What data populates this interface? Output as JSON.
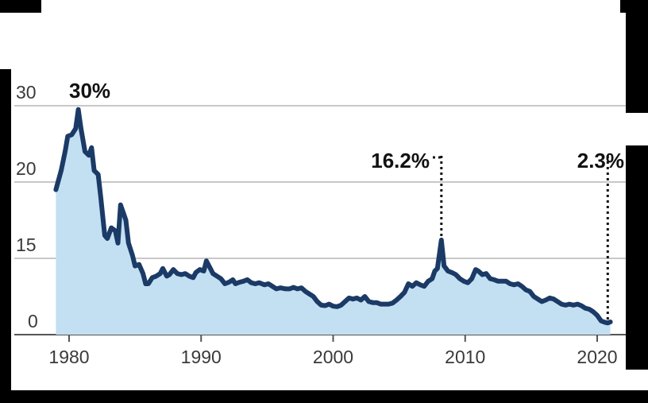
{
  "chart_data": {
    "type": "area",
    "title": "",
    "xlabel": "",
    "ylabel": "",
    "xlim": [
      1979,
      2021
    ],
    "y_tick_labels": [
      "0",
      "15",
      "20",
      "30"
    ],
    "x_ticks": [
      1980,
      1990,
      2000,
      2010,
      2020
    ],
    "grid": true,
    "colors": {
      "line": "#1b3a66",
      "fill": "#c3dff2",
      "grid": "#c8c8c8",
      "annotation": "#111111"
    },
    "annotations": [
      {
        "label": "30%",
        "x": 1980.8,
        "y": 29.5
      },
      {
        "label": "16.2%",
        "x": 2008.2,
        "y": 16.2
      },
      {
        "label": "2.3%",
        "x": 2020.8,
        "y": 2.3
      }
    ],
    "series": [
      {
        "points": [
          [
            1979.0,
            19.5
          ],
          [
            1979.4,
            21.5
          ],
          [
            1979.7,
            24.0
          ],
          [
            1979.9,
            26.0
          ],
          [
            1980.2,
            26.2
          ],
          [
            1980.5,
            27.0
          ],
          [
            1980.7,
            29.5
          ],
          [
            1980.9,
            27.0
          ],
          [
            1981.2,
            24.0
          ],
          [
            1981.5,
            23.5
          ],
          [
            1981.7,
            24.5
          ],
          [
            1981.9,
            21.5
          ],
          [
            1982.2,
            21.0
          ],
          [
            1982.4,
            19.0
          ],
          [
            1982.7,
            16.5
          ],
          [
            1982.9,
            16.3
          ],
          [
            1983.2,
            17.0
          ],
          [
            1983.5,
            16.8
          ],
          [
            1983.7,
            16.0
          ],
          [
            1983.9,
            18.5
          ],
          [
            1984.1,
            18.0
          ],
          [
            1984.3,
            17.5
          ],
          [
            1984.5,
            16.0
          ],
          [
            1984.8,
            15.2
          ],
          [
            1985.0,
            13.5
          ],
          [
            1985.3,
            13.8
          ],
          [
            1985.6,
            12.0
          ],
          [
            1985.8,
            10.0
          ],
          [
            1986.0,
            10.0
          ],
          [
            1986.3,
            11.2
          ],
          [
            1986.6,
            11.5
          ],
          [
            1986.9,
            12.0
          ],
          [
            1987.1,
            13.0
          ],
          [
            1987.4,
            11.5
          ],
          [
            1987.6,
            11.8
          ],
          [
            1987.9,
            12.8
          ],
          [
            1988.2,
            12.0
          ],
          [
            1988.5,
            11.8
          ],
          [
            1988.8,
            12.0
          ],
          [
            1989.1,
            11.5
          ],
          [
            1989.4,
            11.2
          ],
          [
            1989.6,
            12.2
          ],
          [
            1989.9,
            12.8
          ],
          [
            1990.2,
            12.5
          ],
          [
            1990.4,
            14.5
          ],
          [
            1990.7,
            13.0
          ],
          [
            1990.9,
            12.0
          ],
          [
            1991.2,
            11.5
          ],
          [
            1991.5,
            11.0
          ],
          [
            1991.8,
            10.0
          ],
          [
            1992.1,
            10.3
          ],
          [
            1992.4,
            10.8
          ],
          [
            1992.6,
            10.0
          ],
          [
            1992.9,
            10.3
          ],
          [
            1993.2,
            10.5
          ],
          [
            1993.5,
            10.8
          ],
          [
            1993.8,
            10.2
          ],
          [
            1994.1,
            10.0
          ],
          [
            1994.4,
            10.2
          ],
          [
            1994.8,
            9.8
          ],
          [
            1995.1,
            10.0
          ],
          [
            1995.4,
            9.5
          ],
          [
            1995.7,
            9.0
          ],
          [
            1996.0,
            9.2
          ],
          [
            1996.4,
            9.0
          ],
          [
            1996.7,
            9.0
          ],
          [
            1997.0,
            9.3
          ],
          [
            1997.3,
            9.0
          ],
          [
            1997.6,
            9.2
          ],
          [
            1997.9,
            8.5
          ],
          [
            1998.2,
            8.0
          ],
          [
            1998.5,
            7.5
          ],
          [
            1998.8,
            6.5
          ],
          [
            1999.1,
            5.8
          ],
          [
            1999.4,
            5.7
          ],
          [
            1999.7,
            6.0
          ],
          [
            2000.0,
            5.6
          ],
          [
            2000.3,
            5.5
          ],
          [
            2000.6,
            5.8
          ],
          [
            2000.9,
            6.5
          ],
          [
            2001.2,
            7.2
          ],
          [
            2001.5,
            7.0
          ],
          [
            2001.8,
            7.2
          ],
          [
            2002.1,
            6.8
          ],
          [
            2002.4,
            7.5
          ],
          [
            2002.7,
            6.5
          ],
          [
            2003.0,
            6.3
          ],
          [
            2003.3,
            6.3
          ],
          [
            2003.6,
            6.0
          ],
          [
            2003.9,
            6.0
          ],
          [
            2004.2,
            6.0
          ],
          [
            2004.5,
            6.2
          ],
          [
            2004.8,
            6.8
          ],
          [
            2005.1,
            7.5
          ],
          [
            2005.4,
            8.3
          ],
          [
            2005.7,
            10.0
          ],
          [
            2006.0,
            9.5
          ],
          [
            2006.3,
            10.2
          ],
          [
            2006.6,
            9.8
          ],
          [
            2006.9,
            9.5
          ],
          [
            2007.2,
            10.5
          ],
          [
            2007.5,
            11.0
          ],
          [
            2007.7,
            12.5
          ],
          [
            2007.9,
            13.0
          ],
          [
            2008.2,
            16.2
          ],
          [
            2008.4,
            13.5
          ],
          [
            2008.7,
            12.5
          ],
          [
            2009.0,
            12.2
          ],
          [
            2009.3,
            11.8
          ],
          [
            2009.6,
            11.0
          ],
          [
            2009.9,
            10.5
          ],
          [
            2010.2,
            10.2
          ],
          [
            2010.5,
            11.0
          ],
          [
            2010.8,
            12.8
          ],
          [
            2011.0,
            12.5
          ],
          [
            2011.3,
            11.8
          ],
          [
            2011.6,
            12.0
          ],
          [
            2011.9,
            11.0
          ],
          [
            2012.2,
            10.8
          ],
          [
            2012.5,
            10.5
          ],
          [
            2012.8,
            10.5
          ],
          [
            2013.1,
            10.5
          ],
          [
            2013.4,
            10.0
          ],
          [
            2013.7,
            9.8
          ],
          [
            2014.0,
            10.0
          ],
          [
            2014.3,
            9.5
          ],
          [
            2014.6,
            8.8
          ],
          [
            2014.9,
            8.5
          ],
          [
            2015.2,
            7.5
          ],
          [
            2015.5,
            7.0
          ],
          [
            2015.8,
            6.5
          ],
          [
            2016.1,
            6.8
          ],
          [
            2016.4,
            7.2
          ],
          [
            2016.7,
            7.0
          ],
          [
            2017.0,
            6.5
          ],
          [
            2017.3,
            6.0
          ],
          [
            2017.6,
            5.8
          ],
          [
            2017.9,
            6.0
          ],
          [
            2018.2,
            5.8
          ],
          [
            2018.5,
            6.0
          ],
          [
            2018.8,
            5.7
          ],
          [
            2019.1,
            5.2
          ],
          [
            2019.4,
            5.0
          ],
          [
            2019.7,
            4.5
          ],
          [
            2020.0,
            3.8
          ],
          [
            2020.3,
            2.7
          ],
          [
            2020.6,
            2.4
          ],
          [
            2020.8,
            2.3
          ],
          [
            2021.0,
            2.5
          ]
        ]
      }
    ]
  }
}
